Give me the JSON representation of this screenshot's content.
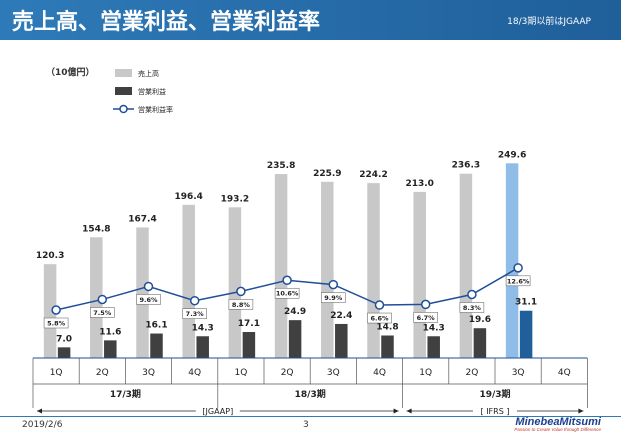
{
  "header": {
    "title": "売上高、営業利益、営業利益率",
    "note": "18/3期以前はJGAAP"
  },
  "footer": {
    "date": "2019/2/6",
    "page": "3",
    "logo_name": "MinebeaMitsumi",
    "logo_tagline": "Passion to Create Value through Difference"
  },
  "colors": {
    "sales": "#c8c8c8",
    "op_income": "#404040",
    "margin_line": "#1f4e9a",
    "sales_highlight": "#8fbde8",
    "op_highlight": "#1f5f9a",
    "header": "#2e7ab8"
  },
  "chart_data": {
    "type": "bar",
    "unit_label": "（10億円）",
    "categories": [
      "1Q",
      "2Q",
      "3Q",
      "4Q",
      "1Q",
      "2Q",
      "3Q",
      "4Q",
      "1Q",
      "2Q",
      "3Q",
      "4Q"
    ],
    "periods": [
      {
        "label": "17/3期",
        "start": 0,
        "end": 3
      },
      {
        "label": "18/3期",
        "start": 4,
        "end": 7
      },
      {
        "label": "19/3期",
        "start": 8,
        "end": 11
      }
    ],
    "standards": [
      {
        "label": "[JGAAP]",
        "start": 0,
        "end": 7
      },
      {
        "label": "[ IFRS ]",
        "start": 8,
        "end": 11
      }
    ],
    "series": [
      {
        "name": "売上高",
        "kind": "bar",
        "values": [
          120.3,
          154.8,
          167.4,
          196.4,
          193.2,
          235.8,
          225.9,
          224.2,
          213.0,
          236.3,
          249.6,
          null
        ],
        "labels": [
          "120.3",
          "154.8",
          "167.4",
          "196.4",
          "193.2",
          "235.8",
          "225.9",
          "224.2",
          "213.0",
          "236.3",
          "249.6",
          ""
        ]
      },
      {
        "name": "営業利益",
        "kind": "bar",
        "values": [
          7.0,
          11.6,
          16.1,
          14.3,
          17.1,
          24.9,
          22.4,
          14.8,
          14.3,
          19.6,
          31.1,
          null
        ],
        "labels": [
          "7.0",
          "11.6",
          "16.1",
          "14.3",
          "17.1",
          "24.9",
          "22.4",
          "14.8",
          "14.3",
          "19.6",
          "31.1",
          ""
        ]
      },
      {
        "name": "営業利益率",
        "kind": "line",
        "values": [
          5.8,
          7.5,
          9.6,
          7.3,
          8.8,
          10.6,
          9.9,
          6.6,
          6.7,
          8.3,
          12.6,
          null
        ],
        "labels": [
          "5.8%",
          "7.5%",
          "9.6%",
          "7.3%",
          "8.8%",
          "10.6%",
          "9.9%",
          "6.6%",
          "6.7%",
          "8.3%",
          "12.6%",
          ""
        ]
      }
    ],
    "highlight_index": 10,
    "legend": [
      "売上高",
      "営業利益",
      "営業利益率"
    ],
    "legend_position": "top-left",
    "grid": false
  }
}
